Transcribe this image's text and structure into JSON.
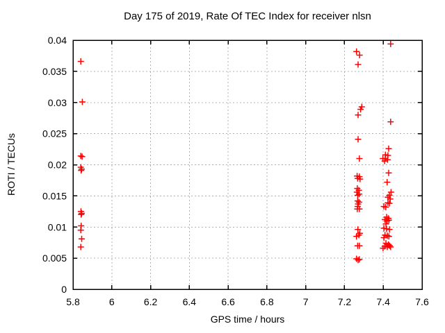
{
  "figure": {
    "background_color": "#ffffff",
    "axis_color": "#000000",
    "grid_color": "#b0b0b0",
    "marker_color": "#ff0000"
  },
  "chart_data": {
    "type": "scatter",
    "title": "Day 175 of 2019, Rate Of TEC Index for receiver nlsn",
    "xlabel": "GPS time / hours",
    "ylabel": "ROTI / TECUs",
    "xlim": [
      5.8,
      7.6
    ],
    "ylim": [
      0,
      0.04
    ],
    "xticks": [
      5.8,
      6,
      6.2,
      6.4,
      6.6,
      6.8,
      7,
      7.2,
      7.4,
      7.6
    ],
    "xtick_labels": [
      "5.8",
      "6",
      "6.2",
      "6.4",
      "6.6",
      "6.8",
      "7",
      "7.2",
      "7.4",
      "7.6"
    ],
    "yticks": [
      0,
      0.005,
      0.01,
      0.015,
      0.02,
      0.025,
      0.03,
      0.035,
      0.04
    ],
    "ytick_labels": [
      "0",
      "0.005",
      "0.01",
      "0.015",
      "0.02",
      "0.025",
      "0.03",
      "0.035",
      "0.04"
    ],
    "grid": true,
    "legend": null,
    "marker": {
      "shape": "plus",
      "color": "#ff0000",
      "size": 9
    },
    "series": [
      {
        "name": "ROTI",
        "points": [
          [
            5.84,
            0.0366
          ],
          [
            5.848,
            0.0301
          ],
          [
            5.84,
            0.0214
          ],
          [
            5.847,
            0.0213
          ],
          [
            5.84,
            0.0196
          ],
          [
            5.845,
            0.0193
          ],
          [
            5.842,
            0.0191
          ],
          [
            5.841,
            0.0125
          ],
          [
            5.845,
            0.0122
          ],
          [
            5.842,
            0.012
          ],
          [
            5.842,
            0.0102
          ],
          [
            5.84,
            0.0095
          ],
          [
            5.845,
            0.0081
          ],
          [
            5.84,
            0.0068
          ],
          [
            7.262,
            0.0382
          ],
          [
            7.278,
            0.0376
          ],
          [
            7.27,
            0.0361
          ],
          [
            7.289,
            0.0293
          ],
          [
            7.283,
            0.0289
          ],
          [
            7.27,
            0.028
          ],
          [
            7.27,
            0.0241
          ],
          [
            7.277,
            0.021
          ],
          [
            7.265,
            0.0182
          ],
          [
            7.277,
            0.0181
          ],
          [
            7.268,
            0.0178
          ],
          [
            7.28,
            0.0177
          ],
          [
            7.266,
            0.0162
          ],
          [
            7.274,
            0.0159
          ],
          [
            7.264,
            0.0156
          ],
          [
            7.276,
            0.0153
          ],
          [
            7.268,
            0.0151
          ],
          [
            7.268,
            0.0142
          ],
          [
            7.275,
            0.014
          ],
          [
            7.27,
            0.0137
          ],
          [
            7.268,
            0.0133
          ],
          [
            7.266,
            0.0129
          ],
          [
            7.277,
            0.0129
          ],
          [
            7.269,
            0.0096
          ],
          [
            7.279,
            0.009
          ],
          [
            7.274,
            0.0087
          ],
          [
            7.262,
            0.0085
          ],
          [
            7.268,
            0.007
          ],
          [
            7.277,
            0.007
          ],
          [
            7.262,
            0.0049
          ],
          [
            7.27,
            0.0047
          ],
          [
            7.277,
            0.0048
          ],
          [
            7.438,
            0.0394
          ],
          [
            7.438,
            0.0269
          ],
          [
            7.428,
            0.0226
          ],
          [
            7.411,
            0.0216
          ],
          [
            7.424,
            0.0215
          ],
          [
            7.398,
            0.021
          ],
          [
            7.41,
            0.021
          ],
          [
            7.422,
            0.0208
          ],
          [
            7.407,
            0.0206
          ],
          [
            7.428,
            0.0187
          ],
          [
            7.42,
            0.0172
          ],
          [
            7.44,
            0.0156
          ],
          [
            7.432,
            0.0151
          ],
          [
            7.424,
            0.0148
          ],
          [
            7.436,
            0.0145
          ],
          [
            7.424,
            0.0139
          ],
          [
            7.432,
            0.0138
          ],
          [
            7.403,
            0.0133
          ],
          [
            7.413,
            0.0132
          ],
          [
            7.417,
            0.0116
          ],
          [
            7.426,
            0.0114
          ],
          [
            7.408,
            0.0112
          ],
          [
            7.429,
            0.0111
          ],
          [
            7.42,
            0.011
          ],
          [
            7.414,
            0.0105
          ],
          [
            7.403,
            0.0098
          ],
          [
            7.417,
            0.0097
          ],
          [
            7.432,
            0.0096
          ],
          [
            7.409,
            0.0087
          ],
          [
            7.421,
            0.0086
          ],
          [
            7.429,
            0.0085
          ],
          [
            7.403,
            0.0083
          ],
          [
            7.414,
            0.0074
          ],
          [
            7.426,
            0.0072
          ],
          [
            7.433,
            0.007
          ],
          [
            7.427,
            0.0071
          ],
          [
            7.407,
            0.0069
          ],
          [
            7.421,
            0.0068
          ],
          [
            7.438,
            0.0068
          ],
          [
            7.399,
            0.0066
          ]
        ]
      }
    ]
  }
}
